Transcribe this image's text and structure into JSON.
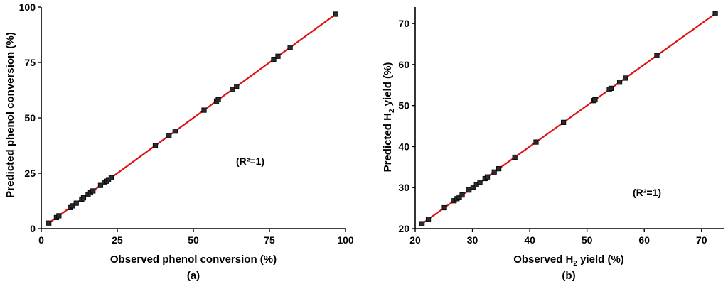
{
  "chart_data": [
    {
      "type": "scatter",
      "panel_label": "(a)",
      "xlabel": "Observed phenol conversion (%)",
      "ylabel": "Predicted phenol conversion (%)",
      "annotation": "(R²=1)",
      "xlim": [
        0,
        100
      ],
      "ylim": [
        0,
        100
      ],
      "xticks": [
        0,
        25,
        50,
        75,
        100
      ],
      "yticks": [
        0,
        25,
        50,
        75,
        100
      ],
      "grid": false,
      "colors": {
        "points": "#2b2b2b",
        "fit_line": "#e01010"
      },
      "fit_line": {
        "x": [
          2.5,
          96.8
        ],
        "y": [
          2.5,
          96.8
        ]
      },
      "series": [
        {
          "x": [
            2.5,
            5.0,
            5.8,
            9.5,
            10.3,
            11.5,
            13.3,
            13.9,
            15.4,
            16.2,
            17.0,
            19.5,
            20.8,
            21.4,
            22.1,
            23.0,
            37.5,
            42.0,
            44.0,
            53.5,
            57.6,
            58.2,
            62.8,
            64.2,
            76.4,
            77.8,
            81.8,
            96.8
          ],
          "y": [
            2.5,
            5.0,
            5.8,
            9.5,
            10.3,
            11.5,
            13.3,
            13.9,
            15.4,
            16.2,
            17.0,
            19.5,
            20.8,
            21.4,
            22.1,
            23.0,
            37.5,
            42.0,
            44.0,
            53.5,
            57.6,
            58.2,
            62.8,
            64.2,
            76.4,
            77.8,
            81.8,
            96.8
          ]
        }
      ]
    },
    {
      "type": "scatter",
      "panel_label": "(b)",
      "xlabel_parts": [
        "Observed H",
        "2",
        " yield (%)"
      ],
      "ylabel_parts": [
        "Predicted H",
        "2",
        " yield (%)"
      ],
      "annotation": "(R²=1)",
      "xlim": [
        20,
        74
      ],
      "ylim": [
        20,
        74
      ],
      "xticks": [
        20,
        30,
        40,
        50,
        60,
        70
      ],
      "yticks": [
        20,
        30,
        40,
        50,
        60,
        70
      ],
      "grid": false,
      "colors": {
        "points": "#2b2b2b",
        "fit_line": "#e01010"
      },
      "fit_line": {
        "x": [
          21.2,
          72.4
        ],
        "y": [
          21.2,
          72.4
        ]
      },
      "series": [
        {
          "x": [
            21.2,
            22.3,
            25.1,
            26.8,
            27.3,
            27.7,
            28.2,
            29.4,
            30.1,
            30.7,
            31.3,
            32.2,
            32.6,
            33.8,
            34.6,
            37.4,
            41.1,
            45.9,
            51.2,
            51.4,
            53.9,
            54.2,
            55.7,
            56.7,
            62.2,
            72.4
          ],
          "y": [
            21.2,
            22.3,
            25.1,
            26.8,
            27.3,
            27.7,
            28.2,
            29.4,
            30.1,
            30.7,
            31.3,
            32.2,
            32.6,
            33.8,
            34.6,
            37.4,
            41.1,
            45.9,
            51.2,
            51.4,
            53.9,
            54.2,
            55.7,
            56.7,
            62.2,
            72.4
          ]
        }
      ]
    }
  ]
}
